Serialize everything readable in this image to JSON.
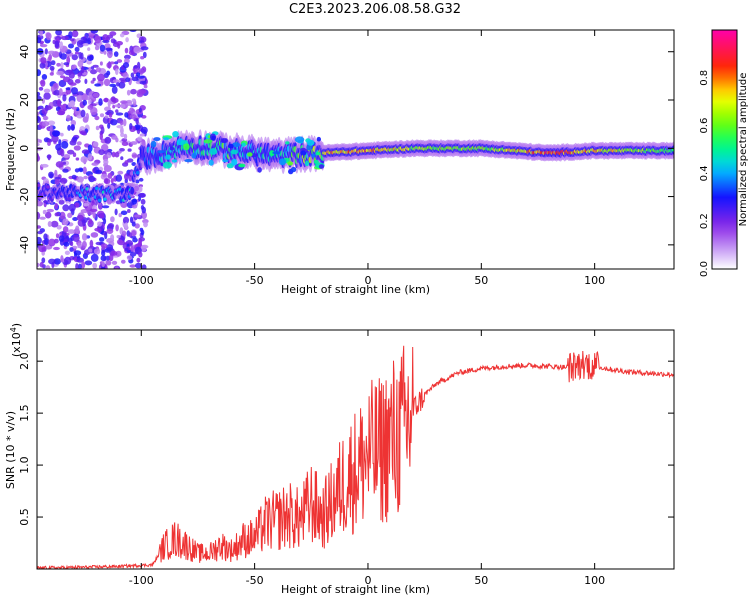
{
  "title": "C2E3.2023.206.08.58.G32",
  "chart_data": [
    {
      "type": "heatmap",
      "title": "C2E3.2023.206.08.58.G32",
      "xlabel": "Height of straight line (km)",
      "ylabel": "Frequency (Hz)",
      "xlim": [
        -146,
        135
      ],
      "ylim": [
        -50,
        49
      ],
      "x_ticks": [
        "-100",
        "-50",
        "0",
        "50",
        "100"
      ],
      "x_tick_values": [
        -100,
        -50,
        0,
        50,
        100
      ],
      "y_ticks": [
        "-40",
        "-20",
        "0",
        "20",
        "40"
      ],
      "y_tick_values": [
        -40,
        -20,
        0,
        20,
        40
      ],
      "colorbar": {
        "label": "Normalized spectral amplitude",
        "range": [
          0,
          1
        ],
        "ticks": [
          "0.0",
          "0.2",
          "0.4",
          "0.6",
          "0.8"
        ],
        "tick_values": [
          0.0,
          0.2,
          0.4,
          0.6,
          0.8
        ],
        "colors": [
          "#ffffff",
          "#8a2be2",
          "#0000ff",
          "#00ffff",
          "#00ff00",
          "#ffff00",
          "#ff0000",
          "#ff00aa"
        ]
      },
      "signal_track": {
        "height_km": [
          -146,
          -120,
          -105,
          -100,
          -90,
          -80,
          -60,
          -40,
          -20,
          0,
          20,
          50,
          80,
          100,
          135
        ],
        "freq_hz": [
          -18,
          -19,
          -19,
          -4,
          -2,
          1,
          -1,
          -3,
          -2,
          -1,
          0,
          0,
          -2,
          -1,
          -1
        ],
        "peak_amplitude": [
          0.2,
          0.45,
          0.45,
          0.35,
          0.45,
          0.5,
          0.55,
          0.45,
          0.75,
          0.8,
          0.65,
          0.6,
          0.85,
          0.75,
          0.55
        ]
      }
    },
    {
      "type": "line",
      "xlabel": "Height of straight line (km)",
      "ylabel": "SNR (10 * v/v)",
      "y_multiplier": "(x10",
      "y_multiplier_exp": "4",
      "y_multiplier_close": ")",
      "xlim": [
        -146,
        135
      ],
      "ylim": [
        0,
        23000
      ],
      "x_ticks": [
        "-100",
        "-50",
        "0",
        "50",
        "100"
      ],
      "x_tick_values": [
        -100,
        -50,
        0,
        50,
        100
      ],
      "y_ticks": [
        "0.5",
        "1.0",
        "1.5",
        "2.0"
      ],
      "y_tick_values": [
        5000,
        10000,
        15000,
        20000
      ],
      "color": "#ee3333",
      "series": [
        {
          "x": [
            -146,
            -130,
            -110,
            -95,
            -90,
            -85,
            -80,
            -75,
            -70,
            -65,
            -60,
            -55,
            -50,
            -45,
            -40,
            -35,
            -30,
            -25,
            -20,
            -15,
            -10,
            -5,
            0,
            5,
            10,
            15,
            20,
            25,
            30,
            40,
            50,
            60,
            70,
            80,
            90,
            95,
            100,
            105,
            110,
            120,
            135
          ],
          "y": [
            100,
            150,
            250,
            400,
            2200,
            2900,
            2300,
            1500,
            1500,
            2300,
            1800,
            2800,
            3000,
            4400,
            4700,
            5200,
            4700,
            6400,
            5000,
            6700,
            8600,
            9600,
            11000,
            11300,
            12500,
            13000,
            15300,
            16800,
            17800,
            18900,
            19300,
            19500,
            19600,
            19500,
            19400,
            19800,
            19500,
            19300,
            19100,
            18900,
            18700
          ]
        }
      ]
    }
  ]
}
